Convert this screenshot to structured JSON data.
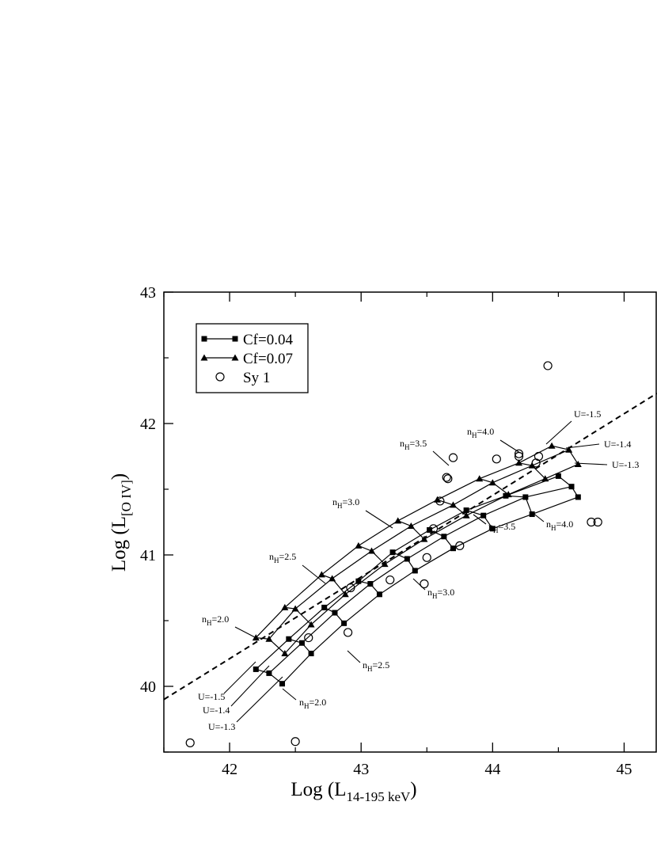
{
  "chart_data": {
    "type": "scatter",
    "xlim": [
      41.5,
      45.25
    ],
    "ylim": [
      39.5,
      43
    ],
    "xticks": [
      42,
      43,
      44,
      45
    ],
    "yticks": [
      40,
      41,
      42,
      43
    ],
    "xticks_minor": [
      41.5,
      42.5,
      43.5,
      44.5
    ],
    "yticks_minor": [
      39.5,
      40.5,
      41.5,
      42.5
    ],
    "xlabel": [
      "Log (L",
      "14-195 keV",
      ")"
    ],
    "ylabel": [
      "Log (L",
      "[O IV]",
      ")"
    ],
    "legend": "upper left",
    "series": [
      {
        "name": "Cf=0.04",
        "marker": "square",
        "color": "#000000",
        "curves": [
          {
            "x": [
              42.2,
              42.45,
              42.72,
              42.98,
              43.24,
              43.52,
              43.8,
              44.1,
              44.5
            ],
            "y": [
              40.13,
              40.36,
              40.6,
              40.8,
              41.02,
              41.19,
              41.34,
              41.45,
              41.6
            ]
          },
          {
            "x": [
              42.3,
              42.55,
              42.8,
              43.07,
              43.35,
              43.63,
              43.93,
              44.25,
              44.6
            ],
            "y": [
              40.1,
              40.33,
              40.56,
              40.78,
              40.97,
              41.14,
              41.3,
              41.44,
              41.52
            ]
          },
          {
            "x": [
              42.4,
              42.62,
              42.87,
              43.14,
              43.41,
              43.7,
              44.0,
              44.3,
              44.65
            ],
            "y": [
              40.02,
              40.25,
              40.48,
              40.7,
              40.88,
              41.05,
              41.2,
              41.31,
              41.44
            ]
          }
        ]
      },
      {
        "name": "Cf=0.07",
        "marker": "triangle",
        "color": "#000000",
        "curves": [
          {
            "x": [
              42.2,
              42.42,
              42.7,
              42.98,
              43.28,
              43.58,
              43.9,
              44.2,
              44.45
            ],
            "y": [
              40.37,
              40.6,
              40.85,
              41.07,
              41.26,
              41.42,
              41.58,
              41.7,
              41.83
            ]
          },
          {
            "x": [
              42.3,
              42.5,
              42.78,
              43.08,
              43.38,
              43.7,
              44.0,
              44.3,
              44.58
            ],
            "y": [
              40.36,
              40.59,
              40.82,
              41.03,
              41.22,
              41.38,
              41.55,
              41.68,
              41.8
            ]
          },
          {
            "x": [
              42.42,
              42.62,
              42.88,
              43.18,
              43.48,
              43.8,
              44.12,
              44.4,
              44.65
            ],
            "y": [
              40.25,
              40.47,
              40.7,
              40.93,
              41.12,
              41.3,
              41.46,
              41.58,
              41.69
            ]
          }
        ]
      },
      {
        "name": "Sy 1",
        "marker": "circle",
        "color": "#000000",
        "x": [
          41.7,
          42.5,
          42.6,
          42.9,
          42.92,
          43.22,
          43.48,
          43.5,
          43.75,
          43.55,
          43.6,
          43.65,
          43.66,
          43.7,
          44.03,
          44.2,
          44.2,
          44.35,
          44.33,
          44.42,
          44.75,
          44.8
        ],
        "y": [
          39.57,
          39.58,
          40.37,
          40.41,
          40.75,
          40.81,
          40.78,
          40.98,
          41.07,
          41.2,
          41.41,
          41.59,
          41.58,
          41.74,
          41.73,
          41.77,
          41.75,
          41.75,
          41.7,
          42.44,
          41.25,
          41.25
        ]
      }
    ],
    "fit_line": {
      "x": [
        41.5,
        45.25
      ],
      "y": [
        39.9,
        42.23
      ],
      "style": "dashed"
    },
    "annotations": [
      [
        "n",
        "H",
        "=2.0"
      ],
      [
        "n",
        "H",
        "=2.5"
      ],
      [
        "n",
        "H",
        "=3.0"
      ],
      [
        "n",
        "H",
        "=3.5"
      ],
      [
        "n",
        "H",
        "=4.0"
      ],
      [
        "n",
        "H",
        "=2.0"
      ],
      [
        "n",
        "H",
        "=2.5"
      ],
      [
        "n",
        "H",
        "=3.0"
      ],
      [
        "n",
        "H",
        "=3.5"
      ],
      [
        "n",
        "H",
        "=4.0"
      ],
      [
        "U=-1.5"
      ],
      [
        "U=-1.4"
      ],
      [
        "U=-1.3"
      ],
      [
        "U=-1.5"
      ],
      [
        "U=-1.4"
      ],
      [
        "U=-1.3"
      ]
    ]
  }
}
